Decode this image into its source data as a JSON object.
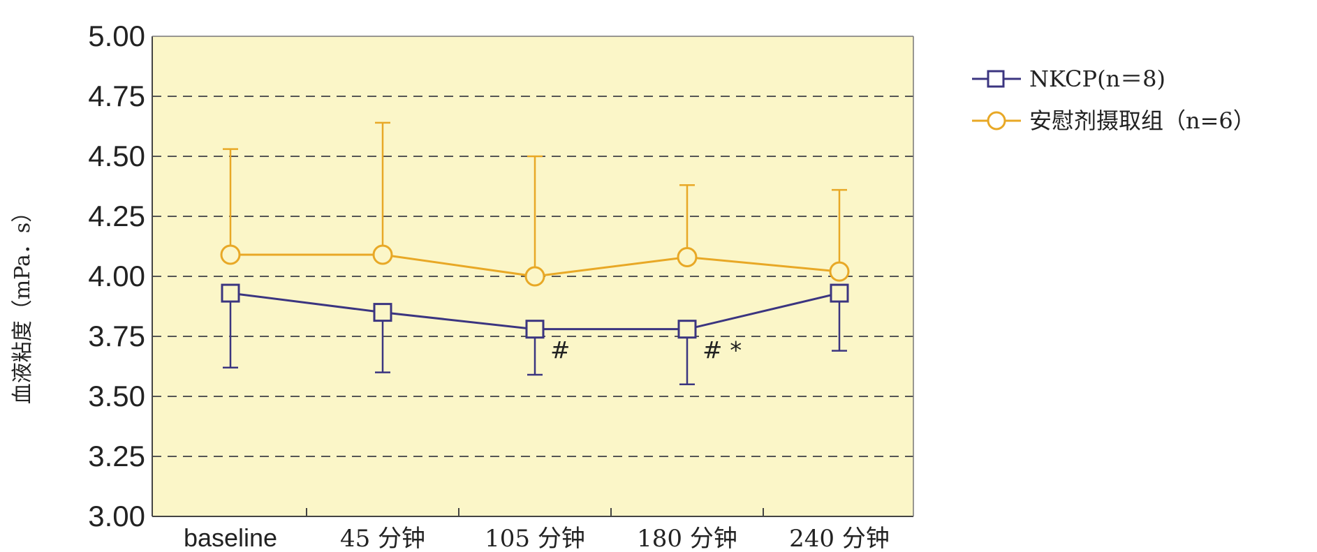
{
  "chart_data": {
    "type": "line",
    "title": "",
    "xlabel": "",
    "ylabel": "血液粘度（mPa．s）",
    "categories": [
      "baseline",
      "45 分钟",
      "105 分钟",
      "180 分钟",
      "240 分钟"
    ],
    "ylim": [
      3.0,
      5.0
    ],
    "yticks": [
      "3.00",
      "3.25",
      "3.50",
      "3.75",
      "4.00",
      "4.25",
      "4.50",
      "4.75",
      "5.00"
    ],
    "grid": "horizontal dashed",
    "legend_placement": "right",
    "background_color": "#fbf6c8",
    "series": [
      {
        "name": "NKCP(n＝8)",
        "marker": "square",
        "color": "#3b3580",
        "values": [
          3.93,
          3.85,
          3.78,
          3.78,
          3.93
        ],
        "error_lower": [
          3.62,
          3.6,
          3.59,
          3.55,
          3.69
        ],
        "error_upper": [
          null,
          null,
          null,
          null,
          null
        ]
      },
      {
        "name": "安慰剂摄取组（n=6）",
        "marker": "circle",
        "color": "#e8a826",
        "values": [
          4.09,
          4.09,
          4.0,
          4.08,
          4.02
        ],
        "error_upper": [
          4.53,
          4.64,
          4.5,
          4.38,
          4.36
        ]
      }
    ],
    "annotations": [
      {
        "text": "#",
        "category": "105 分钟",
        "series": "NKCP(n＝8)"
      },
      {
        "text": "# *",
        "category": "180 分钟",
        "series": "NKCP(n＝8)"
      }
    ]
  }
}
